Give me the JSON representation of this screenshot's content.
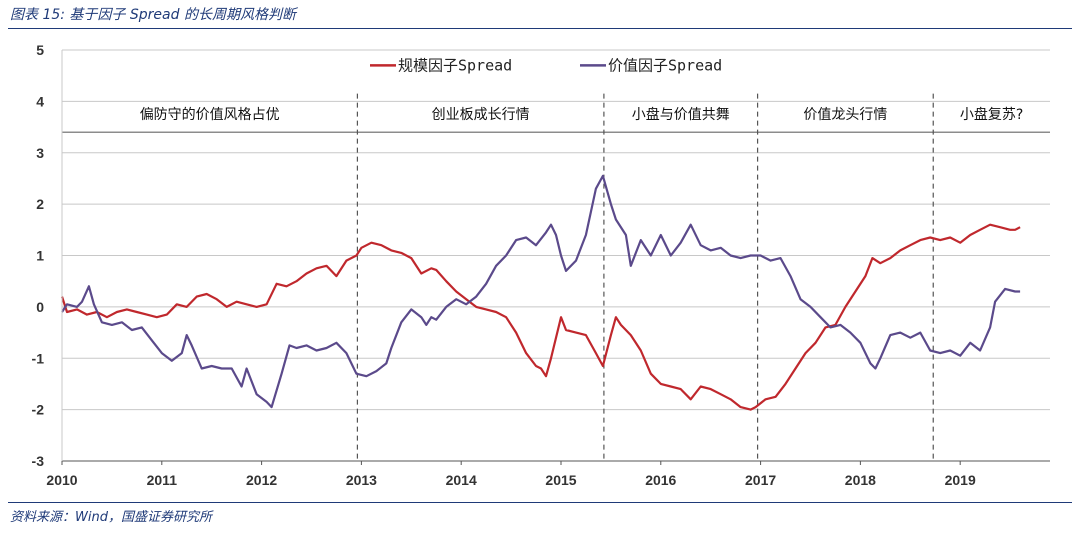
{
  "figure": {
    "title": "图表 15: 基于因子 Spread 的长周期风格判断",
    "source": "资料来源：Wind，国盛证券研究所"
  },
  "colors": {
    "red": "#c0282d",
    "purple": "#5b4a8b",
    "grid": "#c8c8c8",
    "axis": "#555555"
  },
  "chart_data": {
    "type": "line",
    "title": "",
    "xlabel": "",
    "ylabel": "",
    "xlim": [
      2010,
      2019.9
    ],
    "ylim": [
      -3,
      5
    ],
    "x_ticks": [
      "2010",
      "2011",
      "2012",
      "2013",
      "2014",
      "2015",
      "2016",
      "2017",
      "2018",
      "2019"
    ],
    "y_ticks": [
      "5",
      "4",
      "3",
      "2",
      "1",
      "0",
      "-1",
      "-2",
      "-3"
    ],
    "legend_position": "top-center",
    "grid": "horizontal",
    "periods": [
      {
        "label": "偏防守的价值风格占优",
        "start": 2010,
        "end": 2012.96
      },
      {
        "label": "创业板成长行情",
        "start": 2012.96,
        "end": 2015.43
      },
      {
        "label": "小盘与价值共舞",
        "start": 2015.43,
        "end": 2016.97
      },
      {
        "label": "价值龙头行情",
        "start": 2016.97,
        "end": 2018.73
      },
      {
        "label": "小盘复苏?",
        "start": 2018.73,
        "end": 2019.9
      }
    ],
    "series": [
      {
        "name": "规模因子Spread",
        "color": "#c0282d",
        "points": [
          [
            2010.0,
            0.2
          ],
          [
            2010.05,
            -0.1
          ],
          [
            2010.15,
            -0.05
          ],
          [
            2010.25,
            -0.15
          ],
          [
            2010.35,
            -0.1
          ],
          [
            2010.45,
            -0.2
          ],
          [
            2010.55,
            -0.1
          ],
          [
            2010.65,
            -0.05
          ],
          [
            2010.75,
            -0.1
          ],
          [
            2010.85,
            -0.15
          ],
          [
            2010.95,
            -0.2
          ],
          [
            2011.05,
            -0.15
          ],
          [
            2011.15,
            0.05
          ],
          [
            2011.25,
            0.0
          ],
          [
            2011.35,
            0.2
          ],
          [
            2011.45,
            0.25
          ],
          [
            2011.55,
            0.15
          ],
          [
            2011.65,
            0.0
          ],
          [
            2011.75,
            0.1
          ],
          [
            2011.85,
            0.05
          ],
          [
            2011.95,
            0.0
          ],
          [
            2012.05,
            0.05
          ],
          [
            2012.15,
            0.45
          ],
          [
            2012.25,
            0.4
          ],
          [
            2012.35,
            0.5
          ],
          [
            2012.45,
            0.65
          ],
          [
            2012.55,
            0.75
          ],
          [
            2012.65,
            0.8
          ],
          [
            2012.75,
            0.6
          ],
          [
            2012.85,
            0.9
          ],
          [
            2012.95,
            1.0
          ],
          [
            2013.0,
            1.15
          ],
          [
            2013.1,
            1.25
          ],
          [
            2013.2,
            1.2
          ],
          [
            2013.3,
            1.1
          ],
          [
            2013.4,
            1.05
          ],
          [
            2013.5,
            0.95
          ],
          [
            2013.6,
            0.65
          ],
          [
            2013.7,
            0.75
          ],
          [
            2013.75,
            0.72
          ],
          [
            2013.85,
            0.5
          ],
          [
            2013.95,
            0.3
          ],
          [
            2014.05,
            0.15
          ],
          [
            2014.15,
            0.0
          ],
          [
            2014.25,
            -0.05
          ],
          [
            2014.35,
            -0.1
          ],
          [
            2014.45,
            -0.2
          ],
          [
            2014.55,
            -0.5
          ],
          [
            2014.65,
            -0.9
          ],
          [
            2014.75,
            -1.15
          ],
          [
            2014.8,
            -1.2
          ],
          [
            2014.85,
            -1.35
          ],
          [
            2014.9,
            -1.0
          ],
          [
            2014.95,
            -0.6
          ],
          [
            2015.0,
            -0.2
          ],
          [
            2015.05,
            -0.45
          ],
          [
            2015.15,
            -0.5
          ],
          [
            2015.25,
            -0.55
          ],
          [
            2015.35,
            -0.9
          ],
          [
            2015.42,
            -1.15
          ],
          [
            2015.5,
            -0.55
          ],
          [
            2015.55,
            -0.2
          ],
          [
            2015.6,
            -0.35
          ],
          [
            2015.7,
            -0.55
          ],
          [
            2015.8,
            -0.85
          ],
          [
            2015.9,
            -1.3
          ],
          [
            2016.0,
            -1.5
          ],
          [
            2016.1,
            -1.55
          ],
          [
            2016.2,
            -1.6
          ],
          [
            2016.3,
            -1.8
          ],
          [
            2016.4,
            -1.55
          ],
          [
            2016.5,
            -1.6
          ],
          [
            2016.6,
            -1.7
          ],
          [
            2016.7,
            -1.8
          ],
          [
            2016.8,
            -1.95
          ],
          [
            2016.9,
            -2.0
          ],
          [
            2016.95,
            -1.95
          ],
          [
            2017.05,
            -1.8
          ],
          [
            2017.15,
            -1.75
          ],
          [
            2017.25,
            -1.5
          ],
          [
            2017.35,
            -1.2
          ],
          [
            2017.45,
            -0.9
          ],
          [
            2017.55,
            -0.7
          ],
          [
            2017.65,
            -0.4
          ],
          [
            2017.75,
            -0.35
          ],
          [
            2017.85,
            0.0
          ],
          [
            2017.95,
            0.3
          ],
          [
            2018.05,
            0.6
          ],
          [
            2018.12,
            0.95
          ],
          [
            2018.2,
            0.85
          ],
          [
            2018.3,
            0.95
          ],
          [
            2018.4,
            1.1
          ],
          [
            2018.5,
            1.2
          ],
          [
            2018.6,
            1.3
          ],
          [
            2018.7,
            1.35
          ],
          [
            2018.8,
            1.3
          ],
          [
            2018.9,
            1.35
          ],
          [
            2019.0,
            1.25
          ],
          [
            2019.1,
            1.4
          ],
          [
            2019.2,
            1.5
          ],
          [
            2019.3,
            1.6
          ],
          [
            2019.4,
            1.55
          ],
          [
            2019.5,
            1.5
          ],
          [
            2019.55,
            1.5
          ],
          [
            2019.6,
            1.55
          ]
        ]
      },
      {
        "name": "价值因子Spread",
        "color": "#5b4a8b",
        "points": [
          [
            2010.0,
            -0.1
          ],
          [
            2010.05,
            0.05
          ],
          [
            2010.15,
            0.0
          ],
          [
            2010.2,
            0.1
          ],
          [
            2010.27,
            0.4
          ],
          [
            2010.32,
            0.05
          ],
          [
            2010.4,
            -0.3
          ],
          [
            2010.5,
            -0.35
          ],
          [
            2010.6,
            -0.3
          ],
          [
            2010.7,
            -0.45
          ],
          [
            2010.8,
            -0.4
          ],
          [
            2010.9,
            -0.65
          ],
          [
            2011.0,
            -0.9
          ],
          [
            2011.1,
            -1.05
          ],
          [
            2011.2,
            -0.9
          ],
          [
            2011.25,
            -0.55
          ],
          [
            2011.3,
            -0.75
          ],
          [
            2011.4,
            -1.2
          ],
          [
            2011.5,
            -1.15
          ],
          [
            2011.6,
            -1.2
          ],
          [
            2011.7,
            -1.2
          ],
          [
            2011.8,
            -1.55
          ],
          [
            2011.85,
            -1.2
          ],
          [
            2011.95,
            -1.7
          ],
          [
            2012.05,
            -1.85
          ],
          [
            2012.1,
            -1.95
          ],
          [
            2012.2,
            -1.3
          ],
          [
            2012.28,
            -0.75
          ],
          [
            2012.35,
            -0.8
          ],
          [
            2012.45,
            -0.75
          ],
          [
            2012.55,
            -0.85
          ],
          [
            2012.65,
            -0.8
          ],
          [
            2012.75,
            -0.7
          ],
          [
            2012.85,
            -0.9
          ],
          [
            2012.95,
            -1.3
          ],
          [
            2013.05,
            -1.35
          ],
          [
            2013.15,
            -1.25
          ],
          [
            2013.25,
            -1.1
          ],
          [
            2013.3,
            -0.8
          ],
          [
            2013.4,
            -0.3
          ],
          [
            2013.5,
            -0.05
          ],
          [
            2013.6,
            -0.2
          ],
          [
            2013.65,
            -0.35
          ],
          [
            2013.7,
            -0.2
          ],
          [
            2013.75,
            -0.25
          ],
          [
            2013.85,
            0.0
          ],
          [
            2013.95,
            0.15
          ],
          [
            2014.05,
            0.05
          ],
          [
            2014.15,
            0.2
          ],
          [
            2014.25,
            0.45
          ],
          [
            2014.35,
            0.8
          ],
          [
            2014.45,
            1.0
          ],
          [
            2014.55,
            1.3
          ],
          [
            2014.65,
            1.35
          ],
          [
            2014.75,
            1.2
          ],
          [
            2014.85,
            1.45
          ],
          [
            2014.9,
            1.6
          ],
          [
            2014.95,
            1.4
          ],
          [
            2015.0,
            1.0
          ],
          [
            2015.05,
            0.7
          ],
          [
            2015.15,
            0.9
          ],
          [
            2015.25,
            1.4
          ],
          [
            2015.35,
            2.3
          ],
          [
            2015.42,
            2.55
          ],
          [
            2015.5,
            2.0
          ],
          [
            2015.55,
            1.7
          ],
          [
            2015.65,
            1.4
          ],
          [
            2015.7,
            0.8
          ],
          [
            2015.8,
            1.3
          ],
          [
            2015.9,
            1.0
          ],
          [
            2016.0,
            1.4
          ],
          [
            2016.1,
            1.0
          ],
          [
            2016.2,
            1.25
          ],
          [
            2016.3,
            1.6
          ],
          [
            2016.4,
            1.2
          ],
          [
            2016.5,
            1.1
          ],
          [
            2016.6,
            1.15
          ],
          [
            2016.7,
            1.0
          ],
          [
            2016.8,
            0.95
          ],
          [
            2016.9,
            1.0
          ],
          [
            2017.0,
            1.0
          ],
          [
            2017.1,
            0.9
          ],
          [
            2017.2,
            0.95
          ],
          [
            2017.3,
            0.6
          ],
          [
            2017.4,
            0.15
          ],
          [
            2017.5,
            0.0
          ],
          [
            2017.6,
            -0.2
          ],
          [
            2017.7,
            -0.4
          ],
          [
            2017.8,
            -0.35
          ],
          [
            2017.9,
            -0.5
          ],
          [
            2018.0,
            -0.7
          ],
          [
            2018.1,
            -1.1
          ],
          [
            2018.15,
            -1.2
          ],
          [
            2018.2,
            -1.0
          ],
          [
            2018.3,
            -0.55
          ],
          [
            2018.4,
            -0.5
          ],
          [
            2018.5,
            -0.6
          ],
          [
            2018.6,
            -0.5
          ],
          [
            2018.7,
            -0.85
          ],
          [
            2018.8,
            -0.9
          ],
          [
            2018.9,
            -0.85
          ],
          [
            2019.0,
            -0.95
          ],
          [
            2019.1,
            -0.7
          ],
          [
            2019.2,
            -0.85
          ],
          [
            2019.3,
            -0.4
          ],
          [
            2019.35,
            0.1
          ],
          [
            2019.45,
            0.35
          ],
          [
            2019.55,
            0.3
          ],
          [
            2019.6,
            0.3
          ]
        ]
      }
    ]
  }
}
